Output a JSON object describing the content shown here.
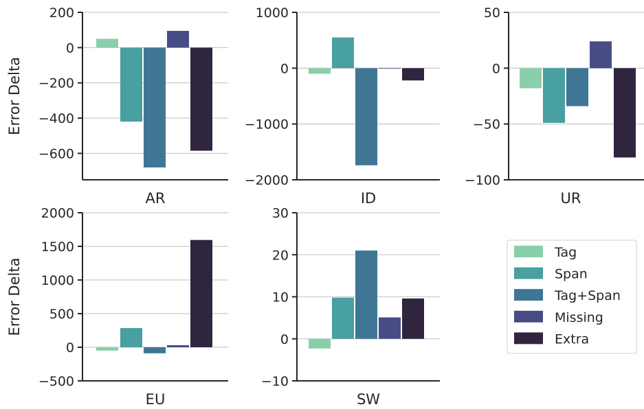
{
  "colors": {
    "tag": "#89cfab",
    "span": "#48a0a0",
    "tag_span": "#3f7695",
    "missing": "#474d84",
    "extra": "#30253f",
    "axis": "#262626",
    "grid": "#cccccc"
  },
  "legend": {
    "placement": "bottom-right",
    "items": [
      {
        "label": "Tag",
        "color": "#89cfab"
      },
      {
        "label": "Span",
        "color": "#48a0a0"
      },
      {
        "label": "Tag+Span",
        "color": "#3f7695"
      },
      {
        "label": "Missing",
        "color": "#474d84"
      },
      {
        "label": "Extra",
        "color": "#30253f"
      }
    ]
  },
  "chart_data": [
    {
      "type": "bar",
      "xlabel": "AR",
      "ylabel": "Error Delta",
      "ylim": [
        -750,
        200
      ],
      "yticks": [
        200,
        0,
        -200,
        -400,
        -600
      ],
      "ytick_labels": [
        "200",
        "0",
        "−200",
        "−400",
        "−600"
      ],
      "grid": true,
      "series": [
        {
          "name": "Tag",
          "values": [
            50
          ]
        },
        {
          "name": "Span",
          "values": [
            -420
          ]
        },
        {
          "name": "Tag+Span",
          "values": [
            -680
          ]
        },
        {
          "name": "Missing",
          "values": [
            95
          ]
        },
        {
          "name": "Extra",
          "values": [
            -585
          ]
        }
      ]
    },
    {
      "type": "bar",
      "xlabel": "ID",
      "ylabel": "",
      "ylim": [
        -2000,
        1000
      ],
      "yticks": [
        1000,
        0,
        -1000,
        -2000
      ],
      "ytick_labels": [
        "1000",
        "0",
        "−1000",
        "−2000"
      ],
      "grid": true,
      "series": [
        {
          "name": "Tag",
          "values": [
            -100
          ]
        },
        {
          "name": "Span",
          "values": [
            550
          ]
        },
        {
          "name": "Tag+Span",
          "values": [
            -1740
          ]
        },
        {
          "name": "Missing",
          "values": [
            0
          ]
        },
        {
          "name": "Extra",
          "values": [
            -220
          ]
        }
      ]
    },
    {
      "type": "bar",
      "xlabel": "UR",
      "ylabel": "",
      "ylim": [
        -100,
        50
      ],
      "yticks": [
        50,
        0,
        -50,
        -100
      ],
      "ytick_labels": [
        "50",
        "0",
        "−50",
        "−100"
      ],
      "grid": true,
      "series": [
        {
          "name": "Tag",
          "values": [
            -18
          ]
        },
        {
          "name": "Span",
          "values": [
            -49
          ]
        },
        {
          "name": "Tag+Span",
          "values": [
            -34
          ]
        },
        {
          "name": "Missing",
          "values": [
            24
          ]
        },
        {
          "name": "Extra",
          "values": [
            -80
          ]
        }
      ]
    },
    {
      "type": "bar",
      "xlabel": "EU",
      "ylabel": "Error Delta",
      "ylim": [
        -500,
        2000
      ],
      "yticks": [
        2000,
        1500,
        1000,
        500,
        0,
        -500
      ],
      "ytick_labels": [
        "2000",
        "1500",
        "1000",
        "500",
        "0",
        "−500"
      ],
      "grid": true,
      "series": [
        {
          "name": "Tag",
          "values": [
            -50
          ]
        },
        {
          "name": "Span",
          "values": [
            285
          ]
        },
        {
          "name": "Tag+Span",
          "values": [
            -90
          ]
        },
        {
          "name": "Missing",
          "values": [
            30
          ]
        },
        {
          "name": "Extra",
          "values": [
            1595
          ]
        }
      ]
    },
    {
      "type": "bar",
      "xlabel": "SW",
      "ylabel": "",
      "ylim": [
        -10,
        30
      ],
      "yticks": [
        30,
        20,
        10,
        0,
        -10
      ],
      "ytick_labels": [
        "30",
        "20",
        "10",
        "0",
        "−10"
      ],
      "grid": true,
      "series": [
        {
          "name": "Tag",
          "values": [
            -2.3
          ]
        },
        {
          "name": "Span",
          "values": [
            9.8
          ]
        },
        {
          "name": "Tag+Span",
          "values": [
            21
          ]
        },
        {
          "name": "Missing",
          "values": [
            5.1
          ]
        },
        {
          "name": "Extra",
          "values": [
            9.6
          ]
        }
      ]
    }
  ]
}
